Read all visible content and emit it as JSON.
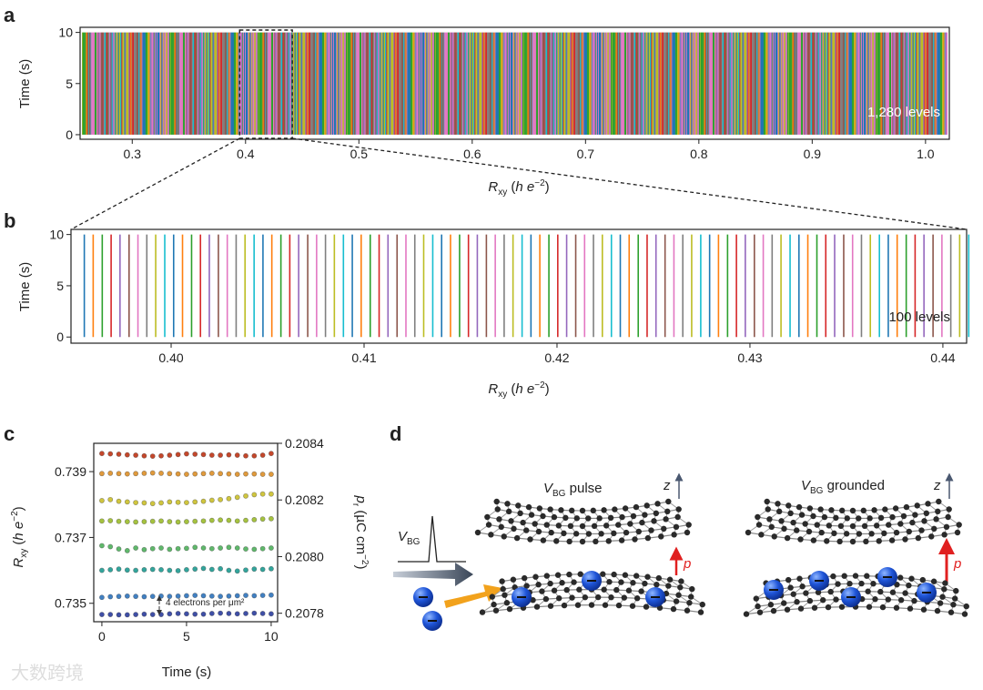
{
  "panels": [
    "a",
    "b",
    "c",
    "d"
  ],
  "chart_data": [
    {
      "type": "levels-texture",
      "x_label": [
        "R",
        "xy",
        " (",
        "h e",
        "−2",
        ")"
      ],
      "y_label": "Time (s)",
      "xlim": [
        0.254,
        1.021
      ],
      "xticks": [
        0.3,
        0.4,
        0.5,
        0.6,
        0.7,
        0.8,
        0.9,
        {
          "value": 1.0,
          "label": "1.0"
        }
      ],
      "ylim": [
        -0.45,
        10.5
      ],
      "yticks": [
        0,
        5,
        10
      ],
      "annotation": "1,280 levels",
      "colors": [
        "#1f77b4",
        "#ff7f0e",
        "#2ca02c",
        "#d62728",
        "#9467bd",
        "#8c564b",
        "#e377c2",
        "#7f7f7f",
        "#bcbd22",
        "#17becf"
      ]
    },
    {
      "type": "levels",
      "x_label": [
        "R",
        "xy",
        " (",
        "h e",
        "−2",
        ")"
      ],
      "y_label": "Time (s)",
      "xlim": [
        0.39481,
        0.44123
      ],
      "xticks": [
        {
          "value": 0.4,
          "label": "0.40"
        },
        0.41,
        0.42,
        0.43,
        0.44
      ],
      "ylim": [
        -0.6,
        10.5
      ],
      "yticks": [
        0,
        5,
        10
      ],
      "annotation": "100 levels",
      "colors": [
        "#1f77b4",
        "#ff7f0e",
        "#2ca02c",
        "#d62728",
        "#9467bd",
        "#8c564b",
        "#e377c2",
        "#7f7f7f",
        "#bcbd22",
        "#17becf"
      ],
      "values": [
        0.3955,
        0.39596,
        0.39643,
        0.39689,
        0.39735,
        0.39782,
        0.39828,
        0.39874,
        0.3992,
        0.39967,
        0.40013,
        0.40059,
        0.40106,
        0.40152,
        0.40198,
        0.40245,
        0.40291,
        0.40337,
        0.40383,
        0.4043,
        0.40476,
        0.40522,
        0.40569,
        0.40615,
        0.40661,
        0.40708,
        0.40754,
        0.408,
        0.40846,
        0.40893,
        0.40939,
        0.40985,
        0.41032,
        0.41078,
        0.41124,
        0.41171,
        0.41217,
        0.41263,
        0.41309,
        0.41356,
        0.41402,
        0.41448,
        0.41495,
        0.41541,
        0.41587,
        0.41634,
        0.4168,
        0.41726,
        0.41772,
        0.41819,
        0.41865,
        0.41911,
        0.41958,
        0.42004,
        0.4205,
        0.42097,
        0.42143,
        0.42189,
        0.42235,
        0.42282,
        0.42328,
        0.42374,
        0.42421,
        0.42467,
        0.42513,
        0.4256,
        0.42606,
        0.42652,
        0.42698,
        0.42745,
        0.42791,
        0.42837,
        0.42884,
        0.4293,
        0.42976,
        0.43023,
        0.43069,
        0.43115,
        0.43161,
        0.43208,
        0.43254,
        0.433,
        0.43347,
        0.43393,
        0.43439,
        0.43486,
        0.43532,
        0.43578,
        0.43624,
        0.43671,
        0.43717,
        0.43763,
        0.4381,
        0.43856,
        0.43902,
        0.43949,
        0.43995,
        0.44041,
        0.44087,
        0.44134
      ]
    },
    {
      "type": "scatter",
      "x_label": "Time (s)",
      "y_label": [
        "R",
        "xy",
        " (",
        "h e",
        "−2",
        ")"
      ],
      "y2_label": [
        "p",
        "r",
        " (µC cm",
        "−2",
        ")"
      ],
      "annotation": "4 electrons per μm²",
      "xlim": [
        -0.48,
        10.38
      ],
      "xticks": [
        0,
        5,
        10
      ],
      "ylim": [
        0.73444,
        0.73986
      ],
      "yticks": [
        0.735,
        0.737,
        0.739
      ],
      "y2lim": [
        0.20777,
        0.2084
      ],
      "y2ticks": [
        {
          "value": 0.2078,
          "label": "0.2078"
        },
        {
          "value": 0.208,
          "label": "0.2080"
        },
        {
          "value": 0.2082,
          "label": "0.2082"
        },
        {
          "value": 0.2084,
          "label": "0.2084"
        }
      ],
      "x": [
        0,
        0.5,
        1,
        1.5,
        2,
        2.5,
        3,
        3.5,
        4,
        4.5,
        5,
        5.5,
        6,
        6.5,
        7,
        7.5,
        8,
        8.5,
        9,
        9.5,
        10
      ],
      "series": [
        {
          "color": "#c4472b",
          "values": [
            0.73955,
            0.73954,
            0.73953,
            0.73951,
            0.7395,
            0.73948,
            0.73947,
            0.73948,
            0.7395,
            0.73952,
            0.73954,
            0.73953,
            0.73952,
            0.7395,
            0.7395,
            0.73951,
            0.7395,
            0.73948,
            0.73948,
            0.7395,
            0.73955
          ]
        },
        {
          "color": "#e09a3c",
          "values": [
            0.73894,
            0.73895,
            0.73894,
            0.73893,
            0.73894,
            0.73895,
            0.73896,
            0.73895,
            0.73894,
            0.73893,
            0.73892,
            0.73893,
            0.73894,
            0.73895,
            0.73894,
            0.73893,
            0.73892,
            0.73893,
            0.73893,
            0.73892,
            0.73892
          ]
        },
        {
          "color": "#cfc53e",
          "values": [
            0.73812,
            0.73815,
            0.7381,
            0.73808,
            0.73806,
            0.73805,
            0.73803,
            0.73805,
            0.73808,
            0.73807,
            0.73806,
            0.73808,
            0.7381,
            0.73813,
            0.73815,
            0.73818,
            0.73822,
            0.73826,
            0.7383,
            0.73832,
            0.73832
          ]
        },
        {
          "color": "#a5c23f",
          "values": [
            0.7375,
            0.73751,
            0.73749,
            0.73748,
            0.73747,
            0.73748,
            0.73749,
            0.7375,
            0.73748,
            0.73747,
            0.73748,
            0.73749,
            0.7375,
            0.73752,
            0.73753,
            0.73752,
            0.7375,
            0.73752,
            0.73754,
            0.73756,
            0.73757
          ]
        },
        {
          "color": "#5fb86b",
          "values": [
            0.73675,
            0.73672,
            0.73665,
            0.7366,
            0.73668,
            0.73663,
            0.73666,
            0.73668,
            0.73664,
            0.73666,
            0.73667,
            0.7367,
            0.73668,
            0.73666,
            0.73668,
            0.7367,
            0.73668,
            0.73665,
            0.73664,
            0.73666,
            0.73668
          ]
        },
        {
          "color": "#32a59c",
          "values": [
            0.736,
            0.73602,
            0.73604,
            0.73601,
            0.736,
            0.73602,
            0.73603,
            0.73602,
            0.736,
            0.73599,
            0.73602,
            0.73604,
            0.73606,
            0.73603,
            0.73605,
            0.736,
            0.73598,
            0.73601,
            0.73604,
            0.73603,
            0.73605
          ]
        },
        {
          "color": "#4180c2",
          "values": [
            0.73518,
            0.7352,
            0.73521,
            0.73522,
            0.73521,
            0.7352,
            0.73521,
            0.73522,
            0.73521,
            0.73522,
            0.73523,
            0.73524,
            0.73523,
            0.73522,
            0.73521,
            0.73522,
            0.73523,
            0.73524,
            0.73523,
            0.73524,
            0.73525
          ]
        },
        {
          "color": "#3f4fa6",
          "values": [
            0.73466,
            0.73466,
            0.73465,
            0.73465,
            0.73466,
            0.73467,
            0.73466,
            0.73466,
            0.73468,
            0.73469,
            0.73468,
            0.73467,
            0.73467,
            0.73469,
            0.7347,
            0.73469,
            0.73468,
            0.73469,
            0.7347,
            0.73469,
            0.73468
          ]
        }
      ]
    }
  ],
  "diagram": {
    "left_title": [
      "V",
      "BG",
      " pulse"
    ],
    "right_title": [
      "V",
      "BG",
      " grounded"
    ],
    "pulse_label": [
      "V",
      "BG"
    ],
    "z_labels": [
      "z",
      "z"
    ],
    "p_labels": [
      "p",
      "p"
    ]
  },
  "watermark": "大数跨境"
}
